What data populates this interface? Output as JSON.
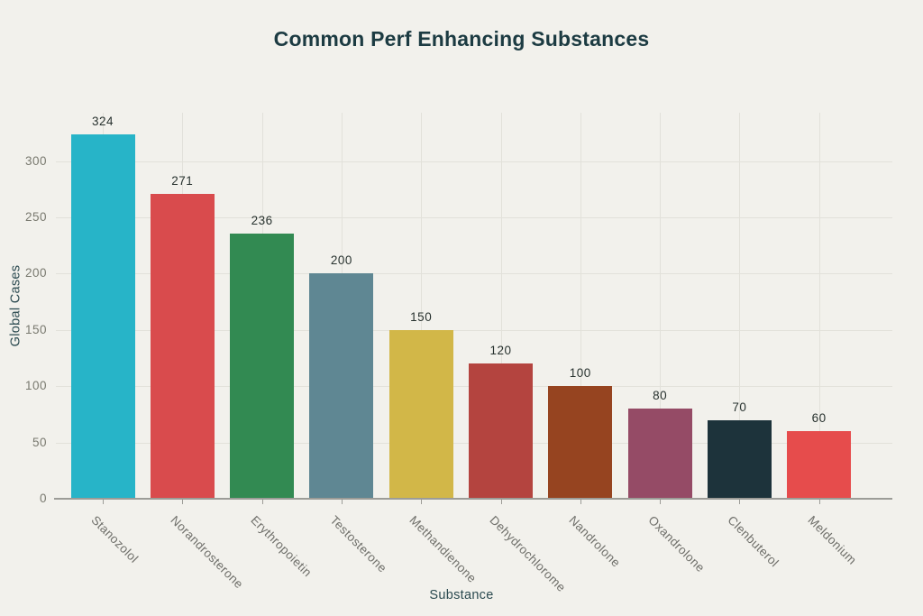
{
  "chart_data": {
    "type": "bar",
    "title": "Common Perf Enhancing Substances",
    "xlabel": "Substance",
    "ylabel": "Global Cases",
    "categories": [
      "Stanozolol",
      "Norandrosterone",
      "Erythropoietin",
      "Testosterone",
      "Methandienone",
      "Dehydrochlorome",
      "Nandrolone",
      "Oxandrolone",
      "Clenbuterol",
      "Meldonium"
    ],
    "values": [
      324,
      271,
      236,
      200,
      150,
      120,
      100,
      80,
      70,
      60
    ],
    "bar_colors": [
      "#27b4c8",
      "#d94b4d",
      "#328a52",
      "#5f8793",
      "#d2b748",
      "#b4443f",
      "#964420",
      "#954b66",
      "#1d333b",
      "#e64c4c"
    ],
    "yticks": [
      0,
      50,
      100,
      150,
      200,
      250,
      300
    ],
    "ylim": [
      0,
      343
    ],
    "grid": true,
    "legend": false,
    "value_labels_shown": true,
    "x_tick_rotation_deg": 45
  },
  "colors": {
    "background": "#f2f1ec",
    "title": "#1c3b42",
    "axis_label": "#2b4a50",
    "tick_label": "#79796f",
    "value_label": "#28322f",
    "gridline": "#e2e1da",
    "axis_line": "#9c9c97"
  }
}
